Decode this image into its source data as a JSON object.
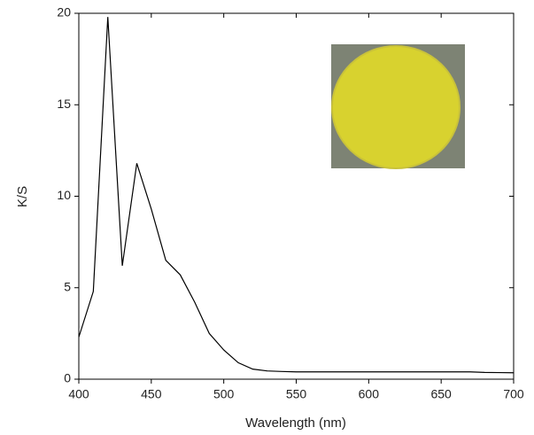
{
  "chart_data": {
    "type": "line",
    "x_label": "Wavelength (nm)",
    "y_label": "K/S",
    "x": [
      400,
      410,
      420,
      430,
      440,
      450,
      460,
      470,
      480,
      490,
      500,
      510,
      520,
      530,
      540,
      550,
      560,
      570,
      580,
      590,
      600,
      610,
      620,
      630,
      640,
      650,
      660,
      670,
      680,
      690,
      700
    ],
    "series": [
      {
        "name": "K/S",
        "color": "#000000",
        "values": [
          2.3,
          4.8,
          19.8,
          6.2,
          11.8,
          9.3,
          6.5,
          5.7,
          4.2,
          2.5,
          1.6,
          0.9,
          0.55,
          0.45,
          0.42,
          0.4,
          0.4,
          0.4,
          0.4,
          0.4,
          0.4,
          0.4,
          0.4,
          0.4,
          0.4,
          0.4,
          0.4,
          0.4,
          0.37,
          0.36,
          0.35
        ]
      }
    ],
    "xlim": [
      400,
      700
    ],
    "xticks": [
      400,
      450,
      500,
      550,
      600,
      650,
      700
    ],
    "ylim": [
      0,
      20
    ],
    "yticks": [
      0,
      5,
      10,
      15,
      20
    ]
  }
}
